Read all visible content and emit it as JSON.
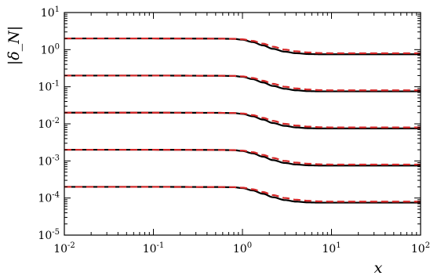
{
  "chart_data": {
    "type": "line",
    "title": "",
    "xlabel": "x",
    "ylabel": "|δ_N|",
    "xscale": "log",
    "yscale": "log",
    "xlim": [
      0.01,
      100
    ],
    "ylim": [
      1e-05,
      10
    ],
    "x_ticks": [
      {
        "base": "10",
        "exp": "-2"
      },
      {
        "base": "10",
        "exp": "-1"
      },
      {
        "base": "10",
        "exp": "0"
      },
      {
        "base": "10",
        "exp": "1"
      },
      {
        "base": "10",
        "exp": "2"
      }
    ],
    "y_ticks": [
      {
        "base": "10",
        "exp": "-5"
      },
      {
        "base": "10",
        "exp": "-4"
      },
      {
        "base": "10",
        "exp": "-3"
      },
      {
        "base": "10",
        "exp": "-2"
      },
      {
        "base": "10",
        "exp": "-1"
      },
      {
        "base": "10",
        "exp": "0"
      },
      {
        "base": "10",
        "exp": "1"
      }
    ],
    "x": [
      0.01,
      0.1,
      0.5,
      0.8,
      1.0,
      1.3,
      1.7,
      2.2,
      3.0,
      4.0,
      5.5,
      7.5,
      10,
      20,
      50,
      100
    ],
    "series": [
      {
        "style": "solid",
        "color": "#000000",
        "values": [
          2,
          2,
          1.98,
          1.95,
          1.85,
          1.6,
          1.3,
          1.05,
          0.88,
          0.8,
          0.76,
          0.75,
          0.75,
          0.75,
          0.75,
          0.75
        ]
      },
      {
        "style": "dashed",
        "color": "#d62728",
        "values": [
          2,
          2,
          1.98,
          1.96,
          1.9,
          1.72,
          1.45,
          1.2,
          1.0,
          0.9,
          0.84,
          0.81,
          0.8,
          0.8,
          0.8,
          0.8
        ]
      },
      {
        "style": "solid",
        "color": "#000000",
        "values": [
          0.2,
          0.2,
          0.198,
          0.195,
          0.185,
          0.16,
          0.13,
          0.105,
          0.088,
          0.08,
          0.076,
          0.075,
          0.075,
          0.075,
          0.075,
          0.075
        ]
      },
      {
        "style": "dashed",
        "color": "#d62728",
        "values": [
          0.2,
          0.2,
          0.198,
          0.196,
          0.19,
          0.172,
          0.145,
          0.12,
          0.1,
          0.09,
          0.084,
          0.081,
          0.08,
          0.08,
          0.08,
          0.08
        ]
      },
      {
        "style": "solid",
        "color": "#000000",
        "values": [
          0.02,
          0.02,
          0.0198,
          0.0195,
          0.0185,
          0.016,
          0.013,
          0.0105,
          0.0088,
          0.008,
          0.0076,
          0.0075,
          0.0075,
          0.0075,
          0.0075,
          0.0075
        ]
      },
      {
        "style": "dashed",
        "color": "#d62728",
        "values": [
          0.02,
          0.02,
          0.0198,
          0.0196,
          0.019,
          0.0172,
          0.0145,
          0.012,
          0.01,
          0.009,
          0.0084,
          0.0081,
          0.008,
          0.008,
          0.008,
          0.008
        ]
      },
      {
        "style": "solid",
        "color": "#000000",
        "values": [
          0.002,
          0.002,
          0.00198,
          0.00195,
          0.00185,
          0.0016,
          0.0013,
          0.00105,
          0.00088,
          0.0008,
          0.00076,
          0.00075,
          0.00075,
          0.00075,
          0.00075,
          0.00075
        ]
      },
      {
        "style": "dashed",
        "color": "#d62728",
        "values": [
          0.002,
          0.002,
          0.00198,
          0.00196,
          0.0019,
          0.00172,
          0.00145,
          0.0012,
          0.001,
          0.0009,
          0.00084,
          0.00081,
          0.0008,
          0.0008,
          0.0008,
          0.0008
        ]
      },
      {
        "style": "solid",
        "color": "#000000",
        "values": [
          0.0002,
          0.0002,
          0.000198,
          0.000195,
          0.000185,
          0.00016,
          0.00013,
          0.000105,
          8.8e-05,
          8e-05,
          7.6e-05,
          7.5e-05,
          7.5e-05,
          7.5e-05,
          7.5e-05,
          7.5e-05
        ]
      },
      {
        "style": "dashed",
        "color": "#d62728",
        "values": [
          0.0002,
          0.0002,
          0.000198,
          0.000196,
          0.00019,
          0.000172,
          0.000145,
          0.00012,
          0.0001,
          9e-05,
          8.4e-05,
          8.1e-05,
          8e-05,
          8e-05,
          8e-05,
          8e-05
        ]
      }
    ],
    "grid": false,
    "legend": "none"
  }
}
